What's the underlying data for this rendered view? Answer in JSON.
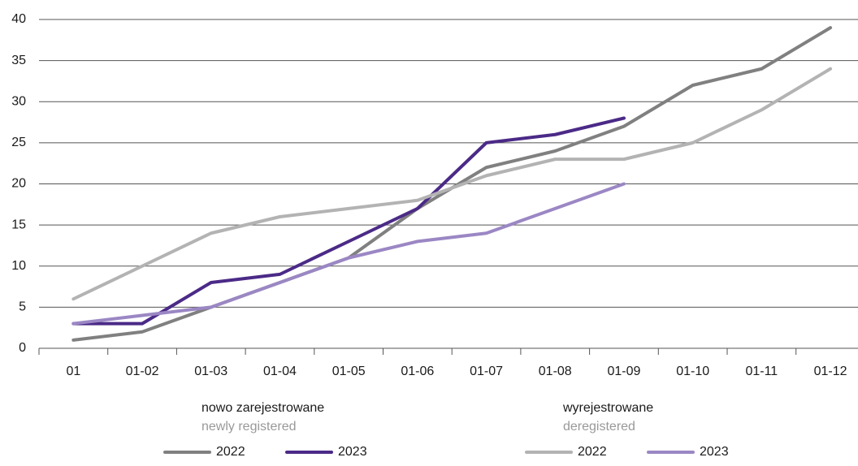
{
  "chart_data": {
    "type": "line",
    "categories": [
      "01",
      "01-02",
      "01-03",
      "01-04",
      "01-05",
      "01-06",
      "01-07",
      "01-08",
      "01-09",
      "01-10",
      "01-11",
      "01-12"
    ],
    "series": [
      {
        "name": "2022",
        "color": "#808080",
        "values": [
          1,
          2,
          5,
          8,
          11,
          17,
          22,
          24,
          27,
          32,
          34,
          39
        ]
      },
      {
        "name": "2023",
        "color": "#4b2a87",
        "values": [
          3,
          3,
          8,
          9,
          13,
          17,
          25,
          26,
          28,
          null,
          null,
          null
        ]
      },
      {
        "name": "2022",
        "color": "#b3b3b3",
        "values": [
          6,
          10,
          14,
          16,
          17,
          18,
          21,
          23,
          23,
          25,
          29,
          34
        ]
      },
      {
        "name": "2023",
        "color": "#9b87c4",
        "values": [
          3,
          4,
          5,
          8,
          11,
          13,
          14,
          17,
          20,
          null,
          null,
          null
        ]
      }
    ],
    "legend_groups": [
      {
        "title": "nowo zarejestrowane",
        "subtitle": "newly registered"
      },
      {
        "title": "wyrejestrowane",
        "subtitle": "deregistered"
      }
    ],
    "ylim": [
      0,
      40
    ],
    "yticks": [
      0,
      5,
      10,
      15,
      20,
      25,
      30,
      35,
      40
    ],
    "grid": true
  }
}
